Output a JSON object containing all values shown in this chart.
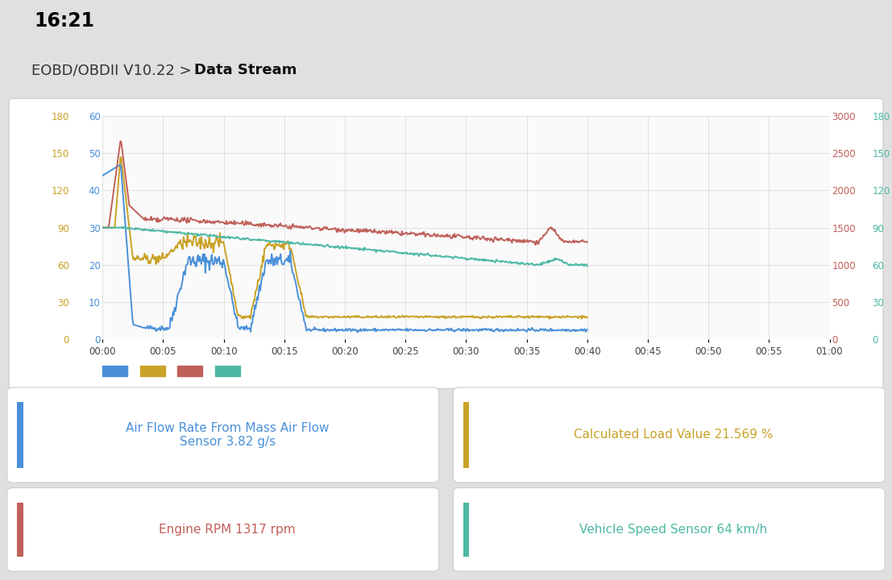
{
  "bg_color": "#e0e0e0",
  "chart_bg": "#ffffff",
  "header_text_normal": "EOBD/OBDII V10.22 > ",
  "header_text_bold": "Data Stream",
  "status_time": "16:21",
  "colors": {
    "blue": "#4a90d9",
    "gold": "#c9a227",
    "red": "#c0605a",
    "teal": "#4db8a4"
  },
  "left_maf_ticks": [
    0,
    10,
    20,
    30,
    40,
    50,
    60
  ],
  "left_clv_ticks": [
    0,
    30,
    60,
    90,
    120,
    150,
    180
  ],
  "right_rpm_ticks": [
    0,
    500,
    1000,
    1500,
    2000,
    2500,
    3000
  ],
  "right_spd_ticks": [
    0,
    30,
    60,
    90,
    120,
    150,
    180
  ],
  "x_ticks": [
    "00:00",
    "00:05",
    "00:10",
    "00:15",
    "00:20",
    "00:25",
    "00:30",
    "00:35",
    "00:40",
    "00:45",
    "00:50",
    "00:55",
    "01:00"
  ],
  "cards": [
    {
      "text": "Air Flow Rate From Mass Air Flow\nSensor 3.82 g/s",
      "color": "#4a90d9",
      "side_color": "#4a90d9"
    },
    {
      "text": "Calculated Load Value 21.569 %",
      "color": "#c9a227",
      "side_color": "#c9a227"
    },
    {
      "text": "Engine RPM 1317 rpm",
      "color": "#c0605a",
      "side_color": "#c0605a"
    },
    {
      "text": "Vehicle Speed Sensor 64 km/h",
      "color": "#4db8a4",
      "side_color": "#4db8a4"
    }
  ]
}
